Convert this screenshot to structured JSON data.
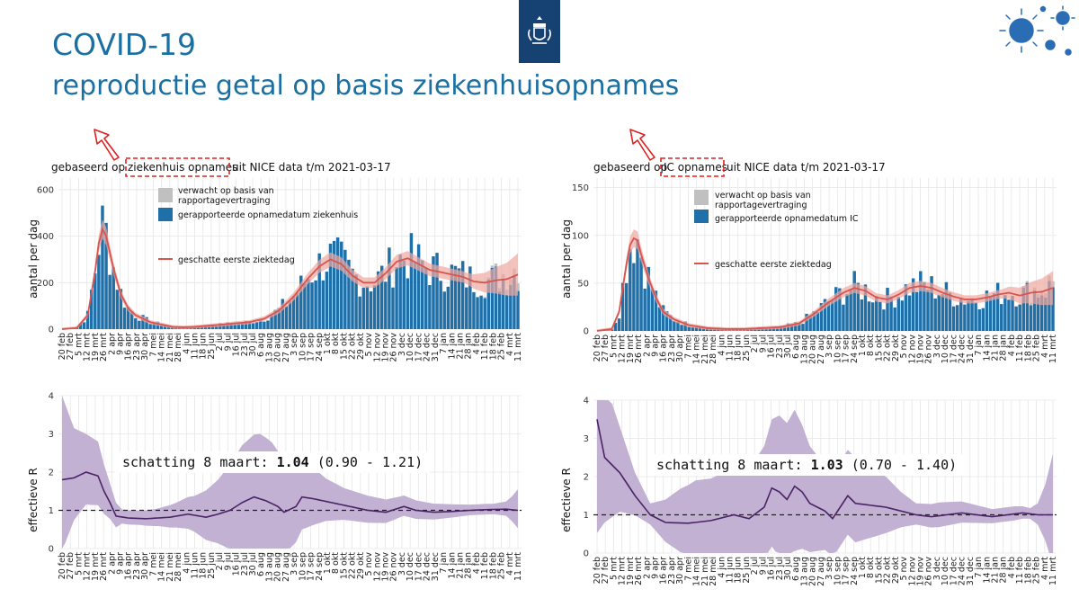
{
  "header": {
    "title": "COVID-19",
    "subtitle": "reproductie getal op basis ziekenhuisopnames"
  },
  "colors": {
    "title": "#1a6fa3",
    "bars_reported": "#1f6fa8",
    "bars_expected": "#c0c0c0",
    "estimate_line": "#d9534f",
    "estimate_band": "#f0a8a0",
    "r_band": "#c3b1d4",
    "r_line": "#4a2466",
    "arrow_highlight": "#e02020"
  },
  "icons": {
    "logo": "rijksoverheid-crest-icon",
    "decoration": "virus-cluster-icon"
  },
  "chart_data": [
    {
      "type": "bar",
      "id": "hosp-admissions",
      "title_prefix": "gebaseerd op",
      "title_highlight": "ziekenhuis opnames",
      "title_suffix": "uit NICE data t/m 2021-03-17",
      "ylabel": "aantal per dag",
      "ylim": [
        0,
        650
      ],
      "yticks": [
        "0",
        "200",
        "400",
        "600"
      ],
      "ytick_values": [
        0,
        200,
        400,
        600
      ],
      "xticks": [
        "20 feb",
        "27 feb",
        "5 mrt",
        "12 mrt",
        "19 mrt",
        "26 mrt",
        "2 apr",
        "9 apr",
        "16 apr",
        "23 apr",
        "30 apr",
        "7 mei",
        "14 mei",
        "21 mei",
        "28 mei",
        "4 jun",
        "11 jun",
        "18 jun",
        "25 jun",
        "2 jul",
        "9 jul",
        "16 jul",
        "23 jul",
        "30 jul",
        "6 aug",
        "13 aug",
        "20 aug",
        "27 aug",
        "3 sep",
        "10 sep",
        "17 sep",
        "24 sep",
        "1 okt",
        "8 okt",
        "15 okt",
        "22 okt",
        "29 okt",
        "5 nov",
        "12 nov",
        "19 nov",
        "26 nov",
        "3 dec",
        "10 dec",
        "17 dec",
        "24 dec",
        "31 dec",
        "7 jan",
        "14 jan",
        "21 jan",
        "28 jan",
        "4 feb",
        "11 feb",
        "18 feb",
        "25 feb",
        "4 mrt",
        "11 mrt"
      ],
      "curve_knots": [
        [
          0,
          0
        ],
        [
          4,
          5
        ],
        [
          7,
          60
        ],
        [
          9,
          250
        ],
        [
          10,
          370
        ],
        [
          11,
          430
        ],
        [
          12,
          400
        ],
        [
          13,
          330
        ],
        [
          14,
          260
        ],
        [
          16,
          150
        ],
        [
          18,
          90
        ],
        [
          20,
          60
        ],
        [
          22,
          45
        ],
        [
          24,
          30
        ],
        [
          27,
          20
        ],
        [
          30,
          10
        ],
        [
          33,
          8
        ],
        [
          36,
          10
        ],
        [
          40,
          15
        ],
        [
          44,
          20
        ],
        [
          47,
          25
        ],
        [
          51,
          30
        ],
        [
          55,
          45
        ],
        [
          59,
          80
        ],
        [
          63,
          140
        ],
        [
          67,
          220
        ],
        [
          70,
          270
        ],
        [
          73,
          300
        ],
        [
          76,
          280
        ],
        [
          79,
          230
        ],
        [
          82,
          200
        ],
        [
          85,
          200
        ],
        [
          88,
          240
        ],
        [
          91,
          290
        ],
        [
          94,
          305
        ],
        [
          97,
          280
        ],
        [
          100,
          255
        ],
        [
          103,
          245
        ],
        [
          106,
          235
        ],
        [
          109,
          225
        ],
        [
          112,
          205
        ],
        [
          115,
          200
        ],
        [
          118,
          210
        ],
        [
          121,
          215
        ],
        [
          124,
          235
        ]
      ],
      "legend": {
        "expected": "verwacht op basis van",
        "expected_2": "rapportagevertraging",
        "reported": "gerapporteerde opnamedatum ziekenhuis",
        "estimate": "geschatte eerste ziektedag"
      }
    },
    {
      "type": "bar",
      "id": "ic-admissions",
      "title_prefix": "gebaseerd op",
      "title_highlight": "IC opnames",
      "title_suffix": "uit NICE data t/m 2021-03-17",
      "ylabel": "aantal per dag",
      "ylim": [
        0,
        160
      ],
      "yticks": [
        "0",
        "50",
        "100",
        "150"
      ],
      "ytick_values": [
        0,
        50,
        100,
        150
      ],
      "xticks": [
        "20 feb",
        "27 feb",
        "5 mrt",
        "12 mrt",
        "19 mrt",
        "26 mrt",
        "2 apr",
        "9 apr",
        "16 apr",
        "23 apr",
        "30 apr",
        "7 mei",
        "14 mei",
        "21 mei",
        "28 mei",
        "4 jun",
        "11 jun",
        "18 jun",
        "25 jun",
        "2 jul",
        "9 jul",
        "16 jul",
        "23 jul",
        "30 jul",
        "6 aug",
        "13 aug",
        "20 aug",
        "27 aug",
        "3 sep",
        "10 sep",
        "17 sep",
        "24 sep",
        "1 okt",
        "8 okt",
        "15 okt",
        "22 okt",
        "29 okt",
        "5 nov",
        "12 nov",
        "19 nov",
        "26 nov",
        "3 dec",
        "10 dec",
        "17 dec",
        "24 dec",
        "31 dec",
        "7 jan",
        "14 jan",
        "21 jan",
        "28 jan",
        "4 feb",
        "11 feb",
        "18 feb",
        "25 feb",
        "4 mrt",
        "11 mrt"
      ],
      "curve_knots": [
        [
          0,
          0
        ],
        [
          4,
          2
        ],
        [
          6,
          20
        ],
        [
          8,
          70
        ],
        [
          9,
          90
        ],
        [
          10,
          97
        ],
        [
          11,
          95
        ],
        [
          12,
          80
        ],
        [
          14,
          55
        ],
        [
          16,
          35
        ],
        [
          18,
          20
        ],
        [
          21,
          12
        ],
        [
          25,
          6
        ],
        [
          30,
          3
        ],
        [
          35,
          2
        ],
        [
          40,
          2
        ],
        [
          45,
          3
        ],
        [
          50,
          4
        ],
        [
          55,
          8
        ],
        [
          59,
          18
        ],
        [
          63,
          30
        ],
        [
          67,
          40
        ],
        [
          70,
          45
        ],
        [
          73,
          42
        ],
        [
          76,
          35
        ],
        [
          79,
          33
        ],
        [
          82,
          38
        ],
        [
          85,
          45
        ],
        [
          88,
          47
        ],
        [
          91,
          45
        ],
        [
          94,
          40
        ],
        [
          97,
          36
        ],
        [
          100,
          33
        ],
        [
          103,
          33
        ],
        [
          106,
          35
        ],
        [
          109,
          38
        ],
        [
          112,
          40
        ],
        [
          115,
          37
        ],
        [
          118,
          40
        ],
        [
          121,
          41
        ],
        [
          124,
          45
        ]
      ],
      "legend": {
        "expected": "verwacht op basis van",
        "expected_2": "rapportagevertraging",
        "reported": "gerapporteerde opnamedatum IC",
        "estimate": "geschatte eerste ziektedag"
      }
    },
    {
      "type": "line",
      "id": "r-hosp",
      "ylabel": "effectieve R",
      "ylim": [
        0,
        4
      ],
      "yticks": [
        "0",
        "1",
        "2",
        "3",
        "4"
      ],
      "ytick_values": [
        0,
        1,
        2,
        3,
        4
      ],
      "reference_line": 1,
      "xticks": [
        "20 feb",
        "27 feb",
        "5 mrt",
        "12 mrt",
        "19 mrt",
        "26 mrt",
        "2 apr",
        "9 apr",
        "16 apr",
        "23 apr",
        "30 apr",
        "7 mei",
        "14 mei",
        "21 mei",
        "28 mei",
        "4 jun",
        "11 jun",
        "18 jun",
        "25 jun",
        "2 jul",
        "9 jul",
        "16 jul",
        "23 jul",
        "30 jul",
        "6 aug",
        "13 aug",
        "20 aug",
        "27 aug",
        "3 sep",
        "10 sep",
        "17 sep",
        "24 sep",
        "1 okt",
        "8 okt",
        "15 okt",
        "22 okt",
        "29 okt",
        "5 nov",
        "12 nov",
        "19 nov",
        "26 nov",
        "3 dec",
        "10 dec",
        "17 dec",
        "24 dec",
        "31 dec",
        "7 jan",
        "14 jan",
        "21 jan",
        "28 jan",
        "4 feb",
        "11 feb",
        "18 feb",
        "25 feb",
        "4 mrt",
        "11 mrt"
      ],
      "r_knots": [
        [
          0,
          1.8
        ],
        [
          2,
          1.85
        ],
        [
          4,
          2.0
        ],
        [
          6,
          1.9
        ],
        [
          7,
          1.5
        ],
        [
          8,
          1.2
        ],
        [
          9,
          0.85
        ],
        [
          11,
          0.8
        ],
        [
          14,
          0.78
        ],
        [
          18,
          0.82
        ],
        [
          21,
          0.9
        ],
        [
          24,
          0.82
        ],
        [
          26,
          0.9
        ],
        [
          28,
          1.0
        ],
        [
          30,
          1.2
        ],
        [
          32,
          1.35
        ],
        [
          34,
          1.25
        ],
        [
          36,
          1.1
        ],
        [
          37,
          0.95
        ],
        [
          39,
          1.1
        ],
        [
          40,
          1.35
        ],
        [
          42,
          1.3
        ],
        [
          45,
          1.2
        ],
        [
          48,
          1.1
        ],
        [
          51,
          1.0
        ],
        [
          54,
          0.95
        ],
        [
          57,
          1.1
        ],
        [
          59,
          1.0
        ],
        [
          62,
          0.95
        ],
        [
          65,
          0.97
        ],
        [
          68,
          1.0
        ],
        [
          71,
          1.02
        ],
        [
          74,
          1.03
        ],
        [
          76,
          1.0
        ]
      ],
      "band_half": [
        [
          0,
          2.2
        ],
        [
          2,
          1.3
        ],
        [
          4,
          1.0
        ],
        [
          6,
          0.9
        ],
        [
          8,
          0.5
        ],
        [
          10,
          0.2
        ],
        [
          13,
          0.2
        ],
        [
          16,
          0.25
        ],
        [
          19,
          0.35
        ],
        [
          22,
          0.5
        ],
        [
          24,
          0.7
        ],
        [
          26,
          0.9
        ],
        [
          28,
          1.2
        ],
        [
          30,
          1.5
        ],
        [
          33,
          1.7
        ],
        [
          35,
          1.6
        ],
        [
          37,
          1.3
        ],
        [
          39,
          1.1
        ],
        [
          41,
          0.9
        ],
        [
          44,
          0.6
        ],
        [
          47,
          0.45
        ],
        [
          50,
          0.4
        ],
        [
          53,
          0.35
        ],
        [
          56,
          0.3
        ],
        [
          60,
          0.25
        ],
        [
          64,
          0.2
        ],
        [
          68,
          0.15
        ],
        [
          72,
          0.15
        ],
        [
          74,
          0.2
        ],
        [
          75,
          0.35
        ],
        [
          76,
          0.55
        ]
      ],
      "estimate_prefix": "schatting 8 maart: ",
      "estimate_value": "1.04",
      "estimate_range": " (0.90 - 1.21)"
    },
    {
      "type": "line",
      "id": "r-ic",
      "ylabel": "effectieve R",
      "ylim": [
        0,
        4
      ],
      "yticks": [
        "0",
        "1",
        "2",
        "3",
        "4"
      ],
      "ytick_values": [
        0,
        1,
        2,
        3,
        4
      ],
      "reference_line": 1,
      "xticks": [
        "20 feb",
        "27 feb",
        "5 mrt",
        "12 mrt",
        "19 mrt",
        "26 mrt",
        "2 apr",
        "9 apr",
        "16 apr",
        "23 apr",
        "30 apr",
        "7 mei",
        "14 mei",
        "21 mei",
        "28 mei",
        "4 jun",
        "11 jun",
        "18 jun",
        "25 jun",
        "2 jul",
        "9 jul",
        "16 jul",
        "23 jul",
        "30 jul",
        "6 aug",
        "13 aug",
        "20 aug",
        "27 aug",
        "3 sep",
        "10 sep",
        "17 sep",
        "24 sep",
        "1 okt",
        "8 okt",
        "15 okt",
        "22 okt",
        "29 okt",
        "5 nov",
        "12 nov",
        "19 nov",
        "26 nov",
        "3 dec",
        "10 dec",
        "17 dec",
        "24 dec",
        "31 dec",
        "7 jan",
        "14 jan",
        "21 jan",
        "28 jan",
        "4 feb",
        "11 feb",
        "18 feb",
        "25 feb",
        "4 mrt",
        "11 mrt"
      ],
      "r_knots": [
        [
          0,
          3.5
        ],
        [
          1,
          2.5
        ],
        [
          3,
          2.1
        ],
        [
          5,
          1.5
        ],
        [
          7,
          1.0
        ],
        [
          9,
          0.8
        ],
        [
          12,
          0.78
        ],
        [
          15,
          0.85
        ],
        [
          18,
          1.0
        ],
        [
          20,
          0.9
        ],
        [
          22,
          1.2
        ],
        [
          23,
          1.7
        ],
        [
          24,
          1.6
        ],
        [
          25,
          1.4
        ],
        [
          26,
          1.75
        ],
        [
          27,
          1.6
        ],
        [
          28,
          1.3
        ],
        [
          30,
          1.1
        ],
        [
          31,
          0.9
        ],
        [
          32,
          1.2
        ],
        [
          33,
          1.5
        ],
        [
          34,
          1.3
        ],
        [
          36,
          1.25
        ],
        [
          38,
          1.2
        ],
        [
          40,
          1.1
        ],
        [
          42,
          1.0
        ],
        [
          44,
          0.95
        ],
        [
          46,
          1.0
        ],
        [
          48,
          1.05
        ],
        [
          50,
          1.0
        ],
        [
          52,
          0.95
        ],
        [
          54,
          1.0
        ],
        [
          56,
          1.05
        ],
        [
          58,
          1.0
        ],
        [
          60,
          1.0
        ]
      ],
      "band_half": [
        [
          0,
          3.5
        ],
        [
          1,
          2.0
        ],
        [
          3,
          1.2
        ],
        [
          5,
          0.6
        ],
        [
          7,
          0.3
        ],
        [
          9,
          0.6
        ],
        [
          11,
          0.9
        ],
        [
          13,
          1.1
        ],
        [
          15,
          1.1
        ],
        [
          17,
          1.2
        ],
        [
          20,
          1.3
        ],
        [
          22,
          1.6
        ],
        [
          24,
          2.0
        ],
        [
          26,
          2.0
        ],
        [
          28,
          1.5
        ],
        [
          30,
          1.2
        ],
        [
          32,
          1.2
        ],
        [
          34,
          1.2
        ],
        [
          36,
          1.0
        ],
        [
          38,
          0.8
        ],
        [
          40,
          0.5
        ],
        [
          42,
          0.3
        ],
        [
          45,
          0.35
        ],
        [
          48,
          0.3
        ],
        [
          50,
          0.25
        ],
        [
          52,
          0.2
        ],
        [
          55,
          0.2
        ],
        [
          57,
          0.15
        ],
        [
          58,
          0.3
        ],
        [
          59,
          0.8
        ],
        [
          60,
          1.6
        ]
      ],
      "estimate_prefix": "schatting 8 maart: ",
      "estimate_value": "1.03",
      "estimate_range": " (0.70 - 1.40)"
    }
  ]
}
